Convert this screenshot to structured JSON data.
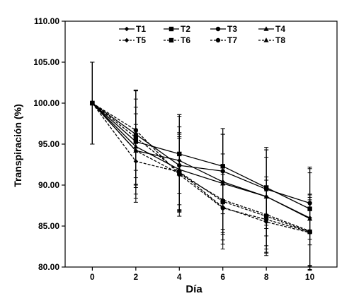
{
  "chart_data": {
    "type": "line",
    "title": "",
    "xlabel": "Día",
    "ylabel": "Transpiración (%)",
    "x": [
      0,
      2,
      4,
      6,
      8,
      10
    ],
    "x_tick_labels": [
      "0",
      "2",
      "4",
      "6",
      "8",
      "10"
    ],
    "y_tick_labels": [
      "80.00",
      "85.00",
      "90.00",
      "95.00",
      "100.00",
      "105.00",
      "110.00"
    ],
    "ylim": [
      80,
      110
    ],
    "xlim": [
      -1.25,
      11.25
    ],
    "grid": false,
    "legend_position": "top",
    "error_bars": true,
    "series": [
      {
        "name": "T1",
        "line_style": "solid",
        "marker": "diamond",
        "values": [
          100,
          94.2,
          93.0,
          90.4,
          88.6,
          86.0
        ],
        "error": [
          5,
          5.3,
          5.4,
          5.8,
          6.0,
          6.0
        ]
      },
      {
        "name": "T2",
        "line_style": "solid",
        "marker": "square",
        "values": [
          100,
          95.3,
          93.8,
          92.3,
          89.7,
          87.1
        ],
        "error": [
          5,
          5.2,
          4.8,
          4.6,
          4.6,
          4.4
        ]
      },
      {
        "name": "T3",
        "line_style": "solid",
        "marker": "circle",
        "values": [
          100,
          96.2,
          92.4,
          91.7,
          89.5,
          87.8
        ],
        "error": [
          5,
          5.3,
          6.2,
          5.2,
          4.8,
          4.4
        ]
      },
      {
        "name": "T4",
        "line_style": "solid",
        "marker": "triangle",
        "values": [
          100,
          94.7,
          91.9,
          90.2,
          88.6,
          85.9
        ],
        "error": [
          5,
          6.8,
          5.2,
          6.0,
          4.8,
          6.3
        ]
      },
      {
        "name": "T5",
        "line_style": "dashed",
        "marker": "diamond",
        "values": [
          100,
          92.9,
          91.6,
          87.3,
          85.5,
          84.2
        ],
        "error": [
          5,
          4.5,
          4.8,
          4.0,
          3.8,
          4.0
        ]
      },
      {
        "name": "T6",
        "line_style": "dashed",
        "marker": "square",
        "values": [
          100,
          95.8,
          91.6,
          88.0,
          86.2,
          84.3
        ],
        "error": [
          5,
          5.8,
          4.6,
          5.8,
          4.8,
          4.6
        ]
      },
      {
        "name": "T7",
        "line_style": "dashed",
        "marker": "circle",
        "values": [
          100,
          96.7,
          91.3,
          87.2,
          85.8,
          84.3
        ],
        "error": [
          5,
          4.9,
          4.4,
          4.4,
          4.0,
          4.2
        ]
      },
      {
        "name": "T8",
        "line_style": "dashed",
        "marker": "triangle",
        "values": [
          100,
          94.2,
          91.4,
          88.2,
          86.4,
          84.4
        ],
        "error": [
          5,
          4.5,
          4.5,
          4.2,
          4.2,
          4.4
        ]
      }
    ]
  }
}
